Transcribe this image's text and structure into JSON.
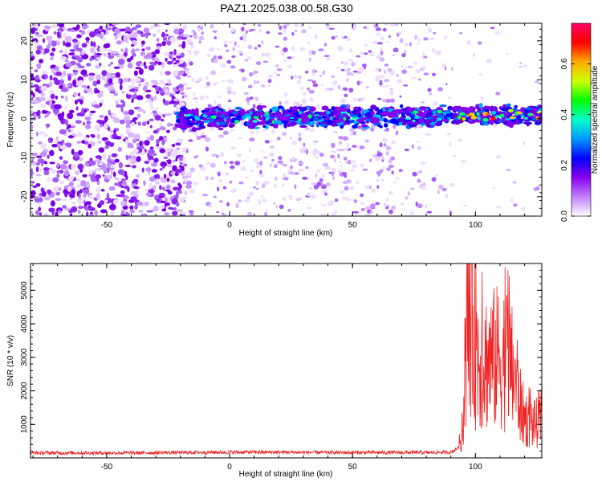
{
  "title": "PAZ1.2025.038.00.58.G30",
  "chart_data": [
    {
      "type": "heatmap",
      "xlabel": "Height of straight line (km)",
      "ylabel": "Frequency (Hz)",
      "xlim": [
        -81,
        127
      ],
      "ylim": [
        -25,
        24.5
      ],
      "xticks": [
        -50,
        0,
        50,
        100
      ],
      "xticklabels": [
        "-50",
        "0",
        "50",
        "100"
      ],
      "yticks": [
        -20,
        -10,
        0,
        10,
        20
      ],
      "yticklabels": [
        "-20",
        "-10",
        "0",
        "10",
        "20"
      ],
      "colorbar": {
        "label": "Normalized spectral amplitude",
        "range": [
          0,
          0.76
        ],
        "ticks": [
          0,
          0.2,
          0.4,
          0.6
        ],
        "ticklabels": [
          "0.0",
          "0.2",
          "0.4",
          "0.6"
        ],
        "colormap": [
          "#ffffff",
          "#cc99ff",
          "#8800ee",
          "#0000ff",
          "#0099ff",
          "#00ffcc",
          "#00ff00",
          "#ccff00",
          "#ffaa00",
          "#ff0000",
          "#ff0066"
        ]
      },
      "band": {
        "x_start": -21,
        "x_end": 127,
        "center_hz_at_start": 0,
        "center_hz_at_end": 1,
        "halfwidth_hz": 2.5,
        "strong_from_x": 93
      },
      "noise_cutoff_x": -20
    },
    {
      "type": "line",
      "xlabel": "Height of straight line (km)",
      "ylabel": "SNR (10 * v/v)",
      "xlim": [
        -81,
        127
      ],
      "ylim": [
        0,
        5800
      ],
      "xticks": [
        -50,
        0,
        50,
        100
      ],
      "xticklabels": [
        "-50",
        "0",
        "50",
        "100"
      ],
      "yticks": [
        1000,
        2000,
        3000,
        4000,
        5000
      ],
      "yticklabels": [
        "1000",
        "2000",
        "3000",
        "4000",
        "5000"
      ],
      "line_color": "#ee2222",
      "series_x": [
        -81,
        -60,
        -40,
        -20,
        0,
        20,
        40,
        60,
        80,
        90,
        93,
        95,
        96,
        97,
        98,
        100,
        103,
        106,
        110,
        113,
        115,
        117,
        118,
        120,
        122,
        124,
        127
      ],
      "series_y": [
        150,
        150,
        150,
        160,
        170,
        170,
        160,
        160,
        160,
        170,
        300,
        800,
        2800,
        3800,
        4500,
        3200,
        2900,
        2900,
        3000,
        3000,
        2600,
        2200,
        1600,
        1200,
        1100,
        1000,
        1100
      ]
    }
  ]
}
